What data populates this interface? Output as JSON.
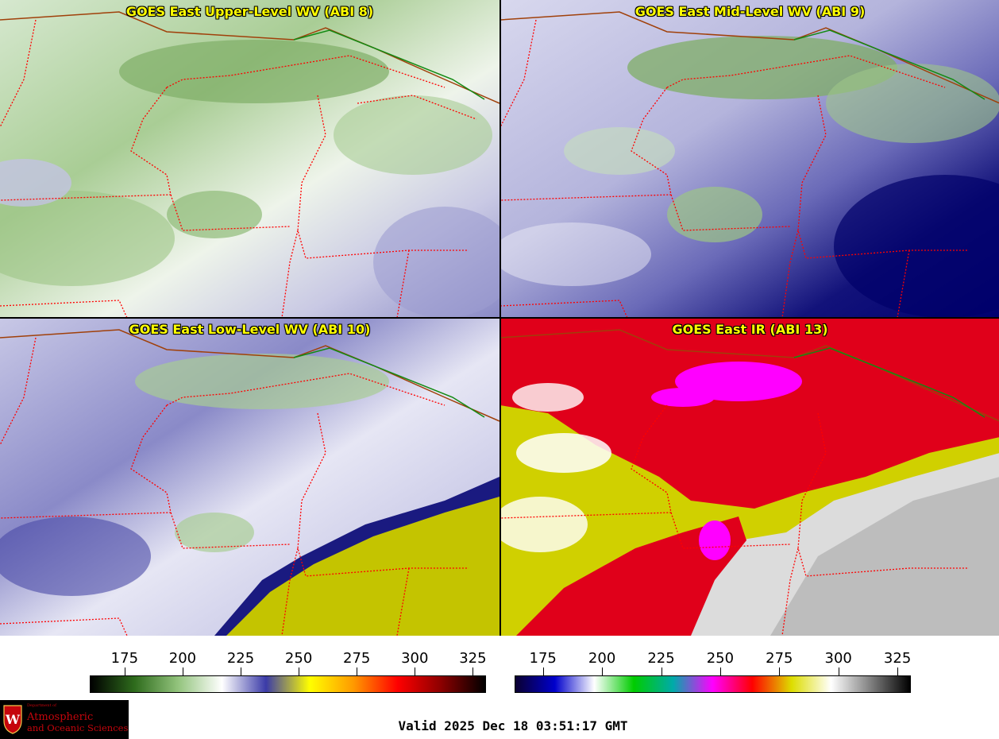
{
  "panels": [
    {
      "title": "GOES East Upper-Level WV (ABI 8)",
      "palette": "wv-upper"
    },
    {
      "title": "GOES East Mid-Level WV (ABI 9)",
      "palette": "wv-mid"
    },
    {
      "title": "GOES East Low-Level WV (ABI 10)",
      "palette": "wv-low"
    },
    {
      "title": "GOES East IR (ABI 13)",
      "palette": "ir"
    }
  ],
  "colorbars": {
    "wv": {
      "ticks": [
        "175",
        "200",
        "225",
        "250",
        "275",
        "300",
        "325"
      ],
      "range": [
        160,
        330
      ],
      "colors": [
        "#000000",
        "#2e6b1c",
        "#93c47d",
        "#ffffff",
        "#3b3ba8",
        "#ffff00",
        "#ff9900",
        "#ff0000",
        "#8b0000",
        "#000000"
      ]
    },
    "ir": {
      "ticks": [
        "175",
        "200",
        "225",
        "250",
        "275",
        "300",
        "325"
      ],
      "range": [
        163,
        330
      ],
      "colors": [
        "#0a0030",
        "#0000cc",
        "#ffffff",
        "#00cc00",
        "#00aaaa",
        "#ff00ff",
        "#ff0000",
        "#dddd00",
        "#ffffff",
        "#808080",
        "#000000"
      ]
    }
  },
  "logo": {
    "dept_small": "Department of",
    "line1": "Atmospheric",
    "line2": "and Oceanic Sciences",
    "crest_letter": "W"
  },
  "valid_text": "Valid 2025 Dec 18 03:51:17 GMT"
}
